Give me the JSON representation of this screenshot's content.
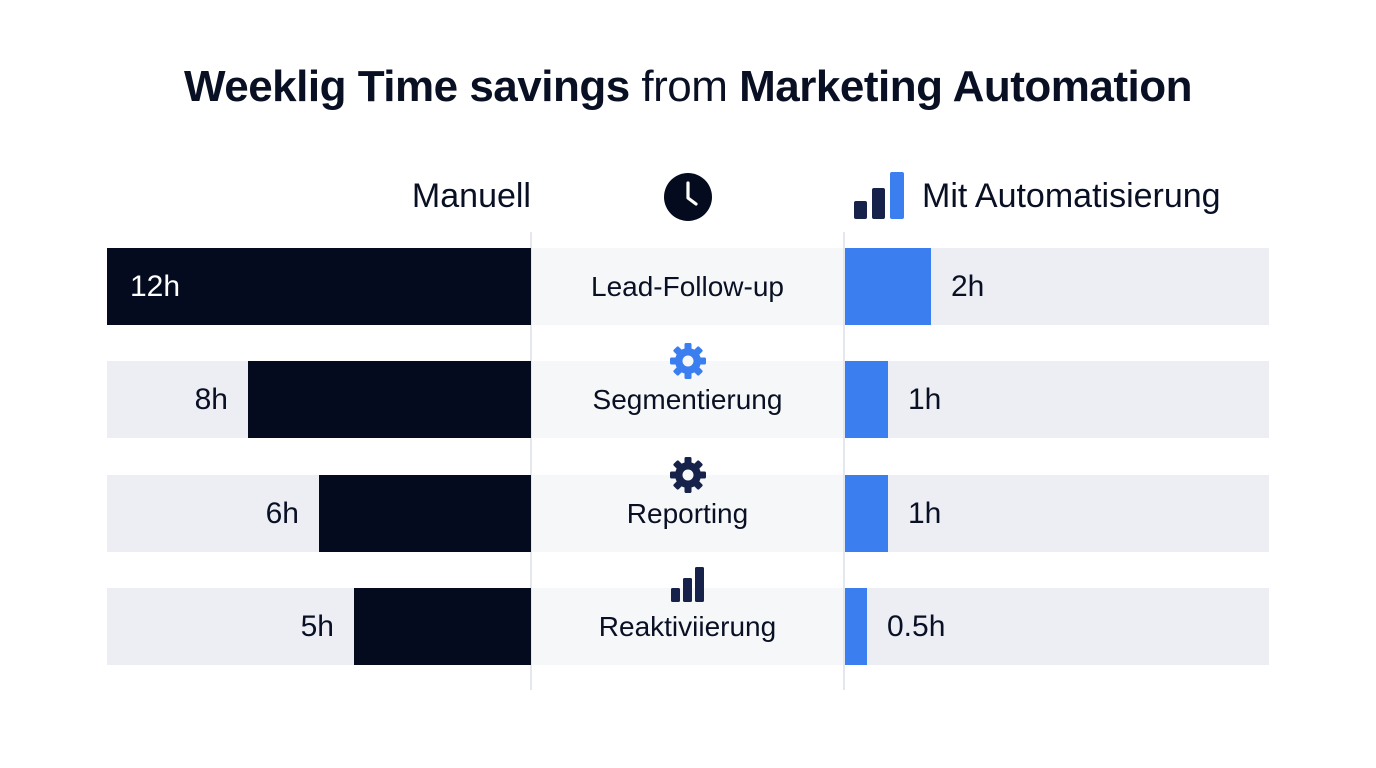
{
  "title": {
    "part1": "Weeklig Time savings",
    "part2": "from",
    "part3": "Marketing Automation"
  },
  "headers": {
    "manual": "Manuell",
    "automated": "Mit Automatisierung",
    "center_icon": "clock-icon",
    "automated_icon": "bar-chart-icon"
  },
  "colors": {
    "manual_bar": "#050b1e",
    "automated_bar": "#3b7ef0",
    "track": "#eceef3",
    "icon_blue": "#3b7ef0",
    "icon_dark": "#16224a"
  },
  "chart_data": {
    "type": "bar",
    "categories": [
      "Lead-Follow-up",
      "Segmentierung",
      "Reporting",
      "Reaktiviierung"
    ],
    "series": [
      {
        "name": "Manuell",
        "values": [
          12,
          8,
          6,
          5
        ],
        "labels": [
          "12h",
          "8h",
          "6h",
          "5h"
        ]
      },
      {
        "name": "Mit Automatisierung",
        "values": [
          2,
          1,
          1,
          0.5
        ],
        "labels": [
          "2h",
          "1h",
          "1h",
          "0.5h"
        ]
      }
    ],
    "category_icons": [
      "",
      "gear-icon",
      "gear-icon",
      "bar-chart-icon"
    ],
    "xlim": [
      0,
      12
    ],
    "unit": "h"
  }
}
